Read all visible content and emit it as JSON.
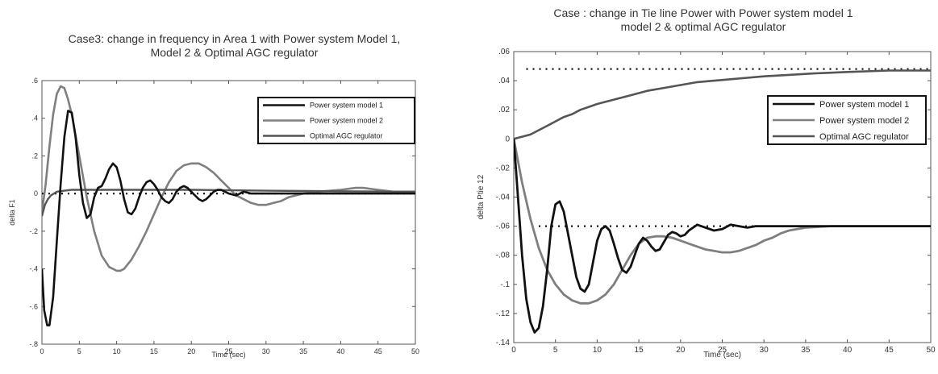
{
  "chart_data": [
    {
      "type": "line",
      "title": "Case3: change in frequency in Area 1 with Power system Model 1,",
      "subtitle": "Model 2 & Optimal AGC regulator",
      "xlabel": "Time (sec)",
      "ylabel": "delta F1",
      "xlim": [
        0,
        50
      ],
      "ylim": [
        -0.8,
        0.6
      ],
      "xticks": [
        0,
        5,
        10,
        15,
        20,
        25,
        30,
        35,
        40,
        45,
        50
      ],
      "yticks": [
        -0.8,
        -0.6,
        -0.4,
        -0.2,
        0,
        0.2,
        0.4,
        0.6
      ],
      "grid": false,
      "legend_position": "top-right",
      "reference_lines": [
        {
          "style": "dotted",
          "y": 0,
          "x": [
            0,
            50
          ]
        }
      ],
      "series": [
        {
          "name": "Power system model 1",
          "color": "#111111",
          "x": [
            0,
            0.3,
            0.7,
            1,
            1.5,
            2,
            2.5,
            3,
            3.5,
            4,
            4.5,
            5,
            5.5,
            6,
            6.5,
            7,
            7.5,
            8,
            8.5,
            9,
            9.5,
            10,
            10.5,
            11,
            11.5,
            12,
            12.5,
            13,
            13.5,
            14,
            14.5,
            15,
            15.5,
            16,
            16.5,
            17,
            17.5,
            18,
            18.5,
            19,
            19.5,
            20,
            20.5,
            21,
            21.5,
            22,
            22.5,
            23,
            23.5,
            24,
            25,
            26,
            27,
            28,
            30,
            35,
            40,
            45,
            50
          ],
          "y": [
            -0.4,
            -0.62,
            -0.7,
            -0.7,
            -0.55,
            -0.25,
            0.05,
            0.3,
            0.44,
            0.43,
            0.3,
            0.1,
            -0.05,
            -0.13,
            -0.11,
            -0.02,
            0.03,
            0.04,
            0.08,
            0.13,
            0.16,
            0.14,
            0.07,
            -0.03,
            -0.1,
            -0.11,
            -0.08,
            -0.02,
            0.03,
            0.06,
            0.07,
            0.05,
            0.02,
            -0.02,
            -0.04,
            -0.05,
            -0.03,
            0.01,
            0.03,
            0.04,
            0.03,
            0.01,
            -0.01,
            -0.03,
            -0.04,
            -0.03,
            -0.01,
            0.01,
            0.02,
            0.02,
            0,
            -0.01,
            0.01,
            0,
            0,
            0,
            0,
            0,
            0
          ]
        },
        {
          "name": "Power system model 2",
          "color": "#7f7f7f",
          "x": [
            0,
            0.5,
            1,
            1.5,
            2,
            2.5,
            3,
            3.5,
            4,
            5,
            6,
            7,
            8,
            9,
            10,
            10.5,
            11,
            12,
            13,
            14,
            15,
            16,
            17,
            18,
            19,
            20,
            21,
            22,
            23,
            24,
            25,
            26,
            27,
            28,
            29,
            30,
            31,
            32,
            33,
            35,
            37,
            40,
            42,
            43,
            45,
            47,
            50
          ],
          "y": [
            -0.1,
            0.05,
            0.25,
            0.42,
            0.53,
            0.57,
            0.56,
            0.5,
            0.42,
            0.2,
            -0.02,
            -0.2,
            -0.33,
            -0.39,
            -0.41,
            -0.41,
            -0.4,
            -0.35,
            -0.28,
            -0.2,
            -0.11,
            -0.02,
            0.06,
            0.12,
            0.15,
            0.16,
            0.16,
            0.14,
            0.11,
            0.07,
            0.03,
            -0.01,
            -0.03,
            -0.05,
            -0.06,
            -0.06,
            -0.05,
            -0.04,
            -0.02,
            0,
            0.01,
            0.02,
            0.03,
            0.03,
            0.02,
            0.01,
            0.01
          ]
        },
        {
          "name": "Optimal AGC regulator",
          "color": "#555555",
          "x": [
            0,
            0.4,
            0.8,
            1.2,
            1.6,
            2,
            3,
            4,
            5,
            7,
            10,
            15,
            20,
            30,
            40,
            50
          ],
          "y": [
            -0.12,
            -0.06,
            -0.03,
            -0.01,
            0,
            0.01,
            0.015,
            0.02,
            0.02,
            0.02,
            0.02,
            0.02,
            0.02,
            0.015,
            0.012,
            0.01
          ]
        }
      ]
    },
    {
      "type": "line",
      "title": "Case : change in Tie line Power with Power system model 1",
      "subtitle": "model 2 & optimal AGC regulator",
      "xlabel": "Time (sec)",
      "ylabel": "delta Ptie 12",
      "xlim": [
        0,
        50
      ],
      "ylim": [
        -0.14,
        0.06
      ],
      "xticks": [
        0,
        5,
        10,
        15,
        20,
        25,
        30,
        35,
        40,
        45,
        50
      ],
      "yticks": [
        -0.14,
        -0.12,
        -0.1,
        -0.08,
        -0.06,
        -0.04,
        -0.02,
        0,
        0.02,
        0.04,
        0.06
      ],
      "grid": false,
      "legend_position": "top-right",
      "reference_lines": [
        {
          "style": "dotted",
          "y": 0.048,
          "x": [
            1.5,
            50
          ]
        },
        {
          "style": "dotted",
          "y": -0.06,
          "x": [
            3,
            50
          ]
        }
      ],
      "series": [
        {
          "name": "Power system model 1",
          "color": "#111111",
          "x": [
            0,
            0.5,
            1,
            1.5,
            2,
            2.5,
            3,
            3.5,
            4,
            4.5,
            5,
            5.5,
            6,
            6.5,
            7,
            7.5,
            8,
            8.5,
            9,
            9.5,
            10,
            10.5,
            11,
            11.5,
            12,
            12.5,
            13,
            13.5,
            14,
            14.5,
            15,
            15.5,
            16,
            16.5,
            17,
            17.5,
            18,
            18.5,
            19,
            19.5,
            20,
            20.5,
            21,
            22,
            23,
            24,
            25,
            26,
            27,
            28,
            29,
            30,
            32,
            35,
            40,
            45,
            50
          ],
          "y": [
            0,
            -0.04,
            -0.08,
            -0.11,
            -0.126,
            -0.133,
            -0.13,
            -0.115,
            -0.09,
            -0.06,
            -0.045,
            -0.043,
            -0.05,
            -0.065,
            -0.08,
            -0.095,
            -0.103,
            -0.105,
            -0.1,
            -0.085,
            -0.07,
            -0.062,
            -0.06,
            -0.063,
            -0.072,
            -0.082,
            -0.09,
            -0.092,
            -0.088,
            -0.08,
            -0.072,
            -0.068,
            -0.07,
            -0.074,
            -0.077,
            -0.076,
            -0.071,
            -0.066,
            -0.064,
            -0.065,
            -0.067,
            -0.066,
            -0.063,
            -0.059,
            -0.061,
            -0.063,
            -0.062,
            -0.059,
            -0.06,
            -0.061,
            -0.06,
            -0.06,
            -0.06,
            -0.06,
            -0.06,
            -0.06,
            -0.06
          ]
        },
        {
          "name": "Power system model 2",
          "color": "#7f7f7f",
          "x": [
            0,
            1,
            2,
            3,
            4,
            5,
            6,
            7,
            8,
            9,
            10,
            11,
            12,
            13,
            14,
            15,
            16,
            17,
            18,
            19,
            20,
            21,
            22,
            23,
            24,
            25,
            26,
            27,
            28,
            29,
            30,
            31,
            32,
            33,
            35,
            38,
            40,
            45,
            50
          ],
          "y": [
            0,
            -0.03,
            -0.055,
            -0.075,
            -0.09,
            -0.1,
            -0.107,
            -0.111,
            -0.113,
            -0.113,
            -0.111,
            -0.107,
            -0.1,
            -0.09,
            -0.08,
            -0.072,
            -0.068,
            -0.067,
            -0.067,
            -0.068,
            -0.07,
            -0.072,
            -0.074,
            -0.076,
            -0.077,
            -0.078,
            -0.078,
            -0.077,
            -0.075,
            -0.073,
            -0.07,
            -0.068,
            -0.065,
            -0.063,
            -0.061,
            -0.06,
            -0.06,
            -0.06,
            -0.06
          ]
        },
        {
          "name": "Optimal AGC regulator",
          "color": "#555555",
          "x": [
            0,
            1,
            2,
            3,
            4,
            5,
            6,
            7,
            8,
            9,
            10,
            12,
            14,
            16,
            18,
            20,
            22,
            24,
            26,
            28,
            30,
            33,
            36,
            40,
            45,
            50
          ],
          "y": [
            0,
            0.0015,
            0.003,
            0.006,
            0.009,
            0.012,
            0.015,
            0.017,
            0.02,
            0.022,
            0.024,
            0.027,
            0.03,
            0.033,
            0.035,
            0.037,
            0.039,
            0.04,
            0.041,
            0.042,
            0.043,
            0.044,
            0.045,
            0.046,
            0.047,
            0.047
          ]
        }
      ]
    }
  ]
}
